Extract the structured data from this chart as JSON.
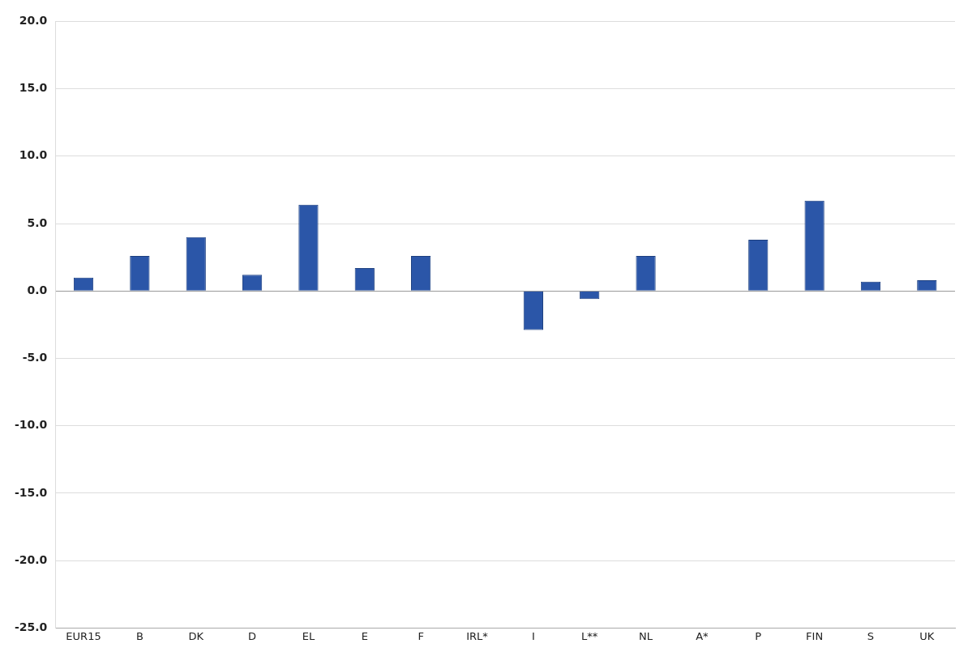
{
  "chart_data": {
    "type": "bar",
    "categories": [
      "EUR15",
      "B",
      "DK",
      "D",
      "EL",
      "E",
      "F",
      "IRL*",
      "I",
      "L**",
      "NL",
      "A*",
      "P",
      "FIN",
      "S",
      "UK"
    ],
    "values": [
      1.0,
      2.6,
      4.0,
      1.2,
      6.4,
      1.7,
      2.6,
      null,
      -2.9,
      -0.6,
      2.6,
      null,
      3.8,
      6.7,
      0.7,
      0.8
    ],
    "color": "#2b56a8",
    "ylim": [
      -25,
      20
    ],
    "yticks": [
      {
        "value": -25,
        "label": "-25.0"
      },
      {
        "value": -20,
        "label": "-20.0"
      },
      {
        "value": -15,
        "label": "-15.0"
      },
      {
        "value": -10,
        "label": "-10.0"
      },
      {
        "value": -5,
        "label": "-5.0"
      },
      {
        "value": 0,
        "label": "0.0"
      },
      {
        "value": 5,
        "label": "5.0"
      },
      {
        "value": 10,
        "label": "10.0"
      },
      {
        "value": 15,
        "label": "15.0"
      },
      {
        "value": 20,
        "label": "20.0"
      }
    ],
    "grid": "y"
  }
}
